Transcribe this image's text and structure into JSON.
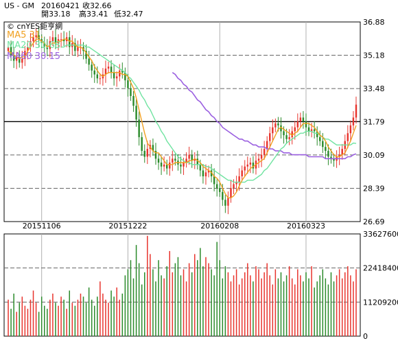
{
  "header": {
    "symbol": "US - GM",
    "date": "20160421",
    "close": "收32.66",
    "open": "開33.18",
    "high": "高33.41",
    "low": "低32.47"
  },
  "watermark": "© cnYES鉅亨網",
  "legend": [
    {
      "label": "MA5 31.",
      "color": "#f0a020"
    },
    {
      "label": "MA20 30.68",
      "color": "#6fe3a0"
    },
    {
      "label": "MA60 30.15",
      "color": "#9a5fe0"
    }
  ],
  "colors": {
    "up": "#e8332c",
    "down": "#2a8a2a",
    "grid": "#666666",
    "ma5": "#f0a020",
    "ma20": "#6fe3a0",
    "ma60": "#9a5fe0"
  },
  "chart_data": {
    "type": "candlestick",
    "price_axis": {
      "ticks": [
        26.69,
        28.39,
        30.09,
        31.79,
        33.48,
        35.18,
        36.88
      ],
      "range": [
        26.69,
        36.88
      ],
      "reference_line": 31.79
    },
    "volume_axis": {
      "ticks": [
        0,
        11209200,
        22418400,
        33627600
      ],
      "range": [
        0,
        33627600
      ]
    },
    "x_labels": [
      {
        "label": "20151106",
        "index": 12
      },
      {
        "label": "20151222",
        "index": 43
      },
      {
        "label": "20160208",
        "index": 76
      },
      {
        "label": "20160323",
        "index": 107
      }
    ],
    "close": [
      35.6,
      35.2,
      34.9,
      35.1,
      34.8,
      35.0,
      35.4,
      35.6,
      35.9,
      36.1,
      36.2,
      36.0,
      35.8,
      35.6,
      35.5,
      35.9,
      36.1,
      35.8,
      36.0,
      36.0,
      35.9,
      36.1,
      35.6,
      35.8,
      35.4,
      35.6,
      35.6,
      35.4,
      35.0,
      34.7,
      34.4,
      34.2,
      34.0,
      34.0,
      34.2,
      34.5,
      34.6,
      34.3,
      34.0,
      34.1,
      34.4,
      34.3,
      33.9,
      33.5,
      33.1,
      32.6,
      31.9,
      31.0,
      30.3,
      30.0,
      30.4,
      30.6,
      30.3,
      29.9,
      29.7,
      29.5,
      29.6,
      29.4,
      29.7,
      29.9,
      29.8,
      29.6,
      29.5,
      29.7,
      29.9,
      30.1,
      29.8,
      29.9,
      29.6,
      29.3,
      29.0,
      29.2,
      29.3,
      29.0,
      28.6,
      28.4,
      28.2,
      27.8,
      27.5,
      27.9,
      28.4,
      28.6,
      28.7,
      29.0,
      29.3,
      29.5,
      29.6,
      29.7,
      29.4,
      29.8,
      29.9,
      30.1,
      30.4,
      30.8,
      31.2,
      31.5,
      31.7,
      31.6,
      31.3,
      31.1,
      30.9,
      31.0,
      31.3,
      31.5,
      31.8,
      32.0,
      31.8,
      31.5,
      31.3,
      31.4,
      31.3,
      31.0,
      30.8,
      30.5,
      30.3,
      30.0,
      29.9,
      29.8,
      30.0,
      30.1,
      30.4,
      30.8,
      31.2,
      31.6,
      32.0,
      32.66
    ],
    "ma5": [
      35.4,
      35.3,
      35.2,
      35.1,
      35.0,
      35.1,
      35.1,
      35.4,
      35.6,
      35.8,
      36.0,
      36.0,
      35.9,
      35.8,
      35.6,
      35.7,
      35.8,
      35.8,
      35.9,
      35.9,
      36.0,
      36.0,
      35.9,
      35.9,
      35.7,
      35.6,
      35.6,
      35.5,
      35.3,
      35.1,
      34.9,
      34.6,
      34.4,
      34.2,
      34.1,
      34.2,
      34.3,
      34.3,
      34.3,
      34.3,
      34.3,
      34.2,
      34.2,
      34.1,
      33.8,
      33.5,
      33.0,
      32.4,
      31.8,
      31.2,
      30.7,
      30.5,
      30.3,
      30.2,
      30.2,
      30.0,
      29.8,
      29.6,
      29.6,
      29.6,
      29.7,
      29.7,
      29.7,
      29.7,
      29.7,
      29.8,
      29.8,
      29.9,
      29.8,
      29.7,
      29.5,
      29.4,
      29.3,
      29.2,
      29.0,
      28.9,
      28.7,
      28.4,
      28.1,
      27.9,
      27.9,
      28.0,
      28.2,
      28.5,
      28.8,
      29.0,
      29.2,
      29.4,
      29.5,
      29.6,
      29.7,
      29.8,
      29.9,
      30.2,
      30.5,
      30.8,
      31.1,
      31.4,
      31.5,
      31.4,
      31.3,
      31.2,
      31.1,
      31.2,
      31.3,
      31.5,
      31.7,
      31.7,
      31.7,
      31.6,
      31.5,
      31.3,
      31.1,
      31.0,
      30.8,
      30.5,
      30.3,
      30.1,
      30.0,
      30.0,
      30.1,
      30.2,
      30.5,
      30.8,
      31.2,
      31.6
    ],
    "ma20": [
      null,
      null,
      null,
      null,
      null,
      null,
      null,
      null,
      null,
      null,
      null,
      null,
      null,
      null,
      null,
      null,
      null,
      null,
      null,
      35.6,
      35.6,
      35.7,
      35.7,
      35.7,
      35.7,
      35.7,
      35.7,
      35.7,
      35.6,
      35.6,
      35.5,
      35.4,
      35.3,
      35.2,
      35.1,
      35.0,
      34.9,
      34.8,
      34.7,
      34.6,
      34.5,
      34.4,
      34.3,
      34.1,
      34.0,
      33.8,
      33.6,
      33.4,
      33.1,
      32.9,
      32.6,
      32.4,
      32.1,
      31.8,
      31.6,
      31.3,
      31.1,
      30.8,
      30.6,
      30.4,
      30.2,
      30.0,
      29.9,
      29.8,
      29.7,
      29.7,
      29.6,
      29.6,
      29.6,
      29.6,
      29.6,
      29.5,
      29.5,
      29.4,
      29.3,
      29.2,
      29.1,
      29.0,
      28.9,
      28.8,
      28.8,
      28.7,
      28.7,
      28.7,
      28.7,
      28.7,
      28.8,
      28.8,
      28.8,
      28.9,
      29.0,
      29.1,
      29.3,
      29.4,
      29.6,
      29.8,
      30.0,
      30.2,
      30.4,
      30.5,
      30.7,
      30.8,
      30.9,
      31.0,
      31.1,
      31.2,
      31.2,
      31.3,
      31.3,
      31.3,
      31.2,
      31.2,
      31.1,
      31.0,
      30.9,
      30.9,
      30.8,
      30.7,
      30.6,
      30.6,
      30.6,
      30.6,
      30.6,
      30.6,
      30.7,
      30.68
    ],
    "ma60": [
      null,
      null,
      null,
      null,
      null,
      null,
      null,
      null,
      null,
      null,
      null,
      null,
      null,
      null,
      null,
      null,
      null,
      null,
      null,
      null,
      null,
      null,
      null,
      null,
      null,
      null,
      null,
      null,
      null,
      null,
      null,
      null,
      null,
      null,
      null,
      null,
      null,
      null,
      null,
      null,
      null,
      null,
      null,
      null,
      null,
      null,
      null,
      null,
      null,
      null,
      null,
      null,
      null,
      null,
      null,
      null,
      null,
      null,
      null,
      34.3,
      34.2,
      34.0,
      33.9,
      33.7,
      33.6,
      33.4,
      33.3,
      33.1,
      32.9,
      32.8,
      32.6,
      32.4,
      32.3,
      32.1,
      32.0,
      31.8,
      31.7,
      31.5,
      31.4,
      31.3,
      31.2,
      31.1,
      31.0,
      30.9,
      30.9,
      30.8,
      30.8,
      30.7,
      30.6,
      30.6,
      30.5,
      30.5,
      30.5,
      30.4,
      30.4,
      30.4,
      30.3,
      30.3,
      30.3,
      30.2,
      30.2,
      30.2,
      30.1,
      30.1,
      30.1,
      30.1,
      30.1,
      30.1,
      30.0,
      30.0,
      30.0,
      30.0,
      30.0,
      30.0,
      29.9,
      29.9,
      29.9,
      29.9,
      29.9,
      29.9,
      29.9,
      29.9,
      30.0,
      30.0,
      30.1,
      30.15
    ],
    "volume": [
      12,
      9,
      14,
      8,
      11,
      13,
      10,
      9,
      12,
      15,
      11,
      8,
      13,
      10,
      9,
      12,
      14,
      11,
      10,
      13,
      12,
      9,
      15,
      11,
      10,
      12,
      14,
      13,
      11,
      16,
      12,
      10,
      13,
      18,
      14,
      12,
      11,
      15,
      13,
      16,
      12,
      14,
      20,
      22,
      25,
      19,
      30,
      24,
      17,
      21,
      33,
      27,
      22,
      18,
      25,
      20,
      19,
      23,
      28,
      21,
      24,
      26,
      20,
      22,
      18,
      24,
      21,
      27,
      25,
      29,
      23,
      26,
      24,
      22,
      20,
      31,
      25,
      19,
      23,
      21,
      18,
      20,
      22,
      17,
      19,
      21,
      24,
      20,
      18,
      23,
      22,
      19,
      21,
      24,
      20,
      17,
      22,
      19,
      21,
      18,
      20,
      23,
      19,
      17,
      22,
      20,
      18,
      21,
      19,
      23,
      16,
      18,
      20,
      22,
      19,
      17,
      21,
      18,
      20,
      22,
      19,
      21,
      23,
      20,
      18,
      22
    ]
  }
}
